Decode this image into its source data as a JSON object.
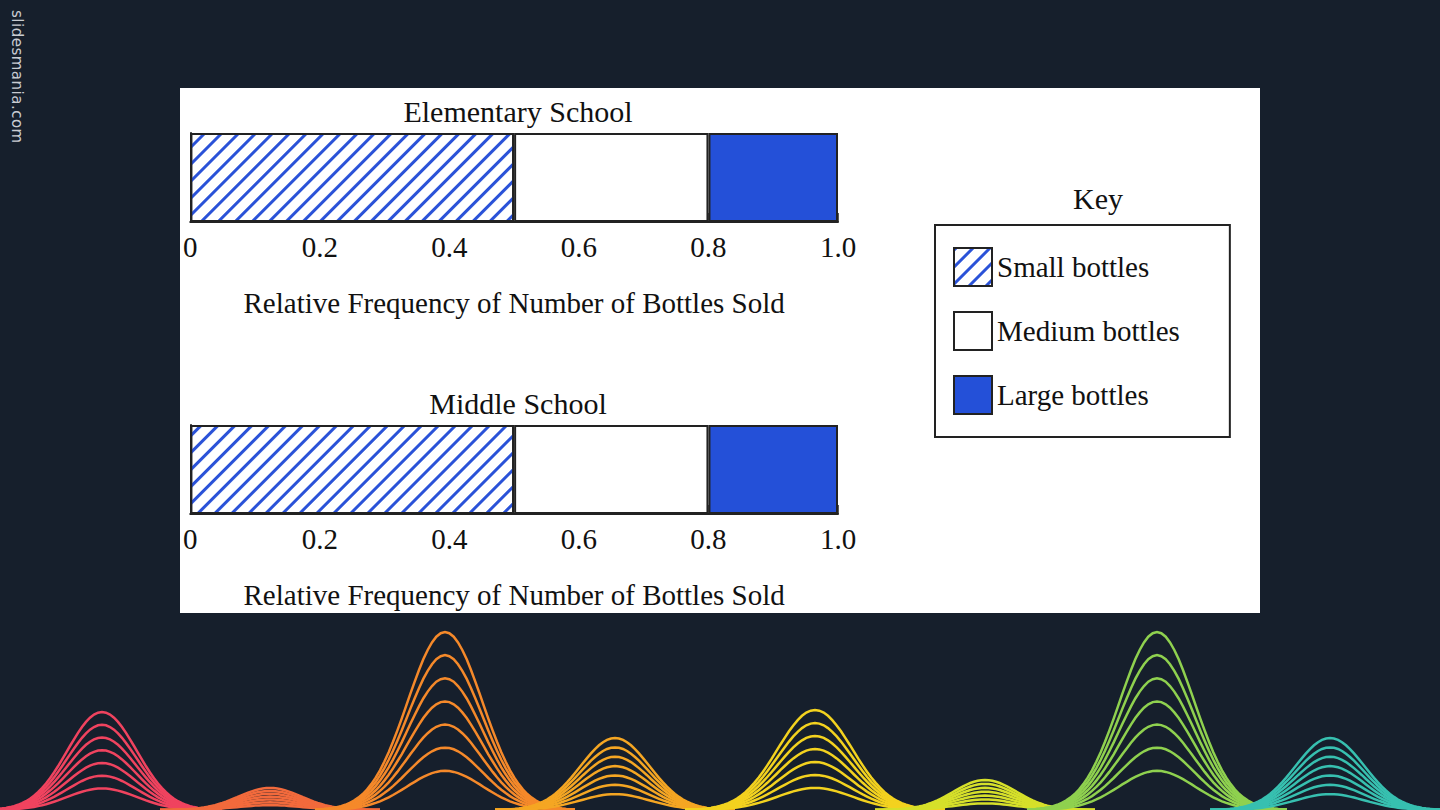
{
  "watermark": "slidesmania.com",
  "chart_data": [
    {
      "type": "bar",
      "title": "Elementary School",
      "orientation": "horizontal",
      "stacked": true,
      "xlabel": "Relative Frequency of Number of Bottles Sold",
      "categories": [
        null
      ],
      "series": [
        {
          "name": "Small bottles",
          "color": "#2a52d8",
          "values": [
            0.5
          ]
        },
        {
          "name": "Medium bottles",
          "color": "#ffffff",
          "values": [
            0.3
          ]
        },
        {
          "name": "Large bottles",
          "color": "#2450d8",
          "values": [
            0.2
          ]
        }
      ],
      "xlim": [
        0,
        1
      ],
      "xticks": [
        0,
        0.2,
        0.4,
        0.6,
        0.8,
        {
          "value": 1,
          "label": "1.0"
        }
      ],
      "grid": false,
      "legend": "right",
      "legend_title": "Key"
    },
    {
      "type": "bar",
      "title": "Middle School",
      "orientation": "horizontal",
      "stacked": true,
      "xlabel": "Relative Frequency of Number of Bottles Sold",
      "categories": [
        null
      ],
      "series": [
        {
          "name": "Small bottles",
          "color": "#2a52d8",
          "values": [
            0.5
          ]
        },
        {
          "name": "Medium bottles",
          "color": "#ffffff",
          "values": [
            0.3
          ]
        },
        {
          "name": "Large bottles",
          "color": "#2450d8",
          "values": [
            0.2
          ]
        }
      ],
      "xlim": [
        0,
        1
      ],
      "xticks": [
        0,
        0.2,
        0.4,
        0.6,
        0.8,
        {
          "value": 1,
          "label": "1.0"
        }
      ],
      "grid": false
    }
  ]
}
